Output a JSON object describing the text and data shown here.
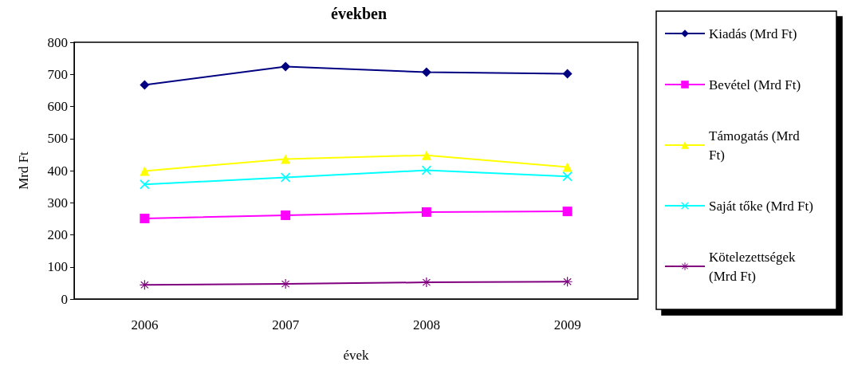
{
  "chart_data": {
    "type": "line",
    "title": "években",
    "xlabel": "évek",
    "ylabel": "Mrd Ft",
    "categories": [
      "2006",
      "2007",
      "2008",
      "2009"
    ],
    "series": [
      {
        "name": "Kiadás (Mrd Ft)",
        "color": "#000080",
        "marker": "diamond",
        "values": [
          667,
          724,
          707,
          702
        ]
      },
      {
        "name": "Bevétel (Mrd Ft)",
        "color": "#ff00ff",
        "marker": "square",
        "values": [
          251,
          261,
          271,
          273
        ]
      },
      {
        "name": "Támogatás (Mrd Ft)",
        "color": "#ffff00",
        "marker": "triangle",
        "values": [
          399,
          436,
          448,
          411
        ]
      },
      {
        "name": "Saját tőke (Mrd Ft)",
        "color": "#00ffff",
        "marker": "cross",
        "values": [
          357,
          379,
          401,
          382
        ]
      },
      {
        "name": "Kötelezettségek (Mrd Ft)",
        "color": "#800080",
        "marker": "star",
        "values": [
          44,
          47,
          52,
          54
        ]
      }
    ],
    "ylim": [
      0,
      800
    ],
    "yticks": [
      0,
      100,
      200,
      300,
      400,
      500,
      600,
      700,
      800
    ],
    "grid": false,
    "legend": "right"
  }
}
